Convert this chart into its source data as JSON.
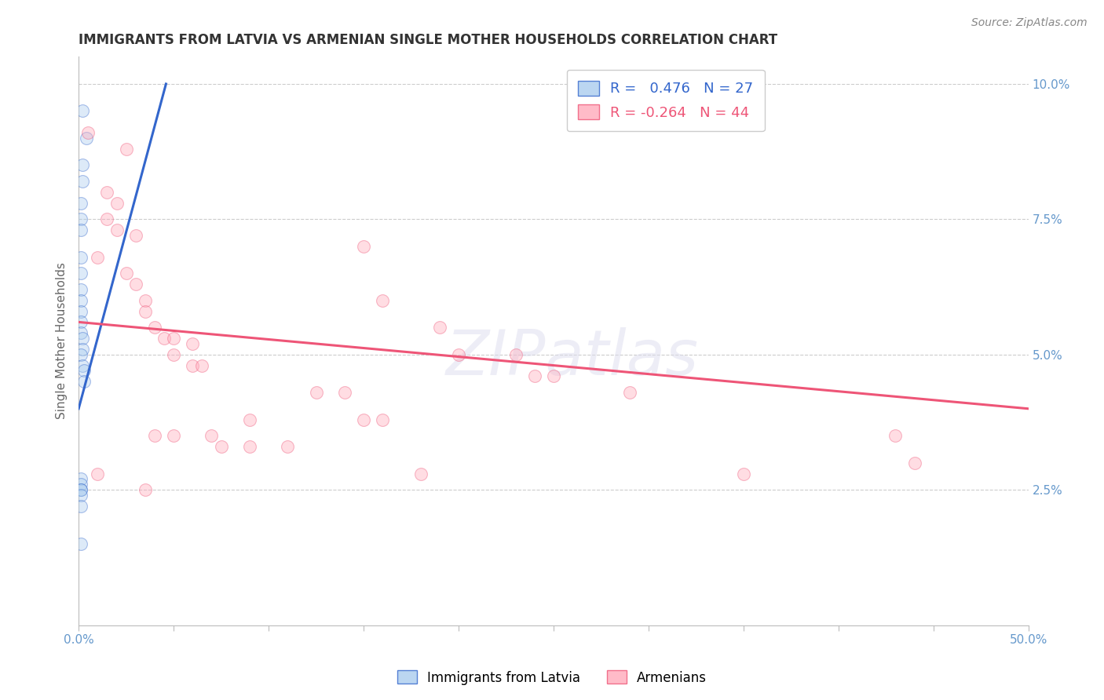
{
  "title": "IMMIGRANTS FROM LATVIA VS ARMENIAN SINGLE MOTHER HOUSEHOLDS CORRELATION CHART",
  "source": "Source: ZipAtlas.com",
  "ylabel": "Single Mother Households",
  "watermark": "ZIPatlas",
  "right_yticks": [
    0.0,
    0.025,
    0.05,
    0.075,
    0.1
  ],
  "right_yticklabels": [
    "",
    "2.5%",
    "5.0%",
    "7.5%",
    "10.0%"
  ],
  "legend_blue_r": "0.476",
  "legend_blue_n": "27",
  "legend_pink_r": "-0.264",
  "legend_pink_n": "44",
  "blue_color": "#AACCEE",
  "pink_color": "#FFAABB",
  "trendline_blue": "#3366CC",
  "trendline_pink": "#EE5577",
  "blue_label": "Immigrants from Latvia",
  "pink_label": "Armenians",
  "blue_points": [
    [
      0.002,
      0.095
    ],
    [
      0.004,
      0.09
    ],
    [
      0.002,
      0.085
    ],
    [
      0.002,
      0.082
    ],
    [
      0.001,
      0.078
    ],
    [
      0.001,
      0.075
    ],
    [
      0.001,
      0.073
    ],
    [
      0.001,
      0.068
    ],
    [
      0.001,
      0.065
    ],
    [
      0.001,
      0.062
    ],
    [
      0.001,
      0.06
    ],
    [
      0.001,
      0.058
    ],
    [
      0.001,
      0.056
    ],
    [
      0.001,
      0.054
    ],
    [
      0.002,
      0.053
    ],
    [
      0.002,
      0.051
    ],
    [
      0.001,
      0.05
    ],
    [
      0.002,
      0.048
    ],
    [
      0.003,
      0.047
    ],
    [
      0.003,
      0.045
    ],
    [
      0.001,
      0.027
    ],
    [
      0.001,
      0.026
    ],
    [
      0.001,
      0.025
    ],
    [
      0.001,
      0.025
    ],
    [
      0.001,
      0.024
    ],
    [
      0.001,
      0.022
    ],
    [
      0.001,
      0.015
    ]
  ],
  "pink_points": [
    [
      0.005,
      0.091
    ],
    [
      0.025,
      0.088
    ],
    [
      0.015,
      0.08
    ],
    [
      0.02,
      0.078
    ],
    [
      0.015,
      0.075
    ],
    [
      0.02,
      0.073
    ],
    [
      0.03,
      0.072
    ],
    [
      0.01,
      0.068
    ],
    [
      0.025,
      0.065
    ],
    [
      0.03,
      0.063
    ],
    [
      0.035,
      0.06
    ],
    [
      0.035,
      0.058
    ],
    [
      0.04,
      0.055
    ],
    [
      0.045,
      0.053
    ],
    [
      0.05,
      0.053
    ],
    [
      0.05,
      0.05
    ],
    [
      0.06,
      0.052
    ],
    [
      0.06,
      0.048
    ],
    [
      0.065,
      0.048
    ],
    [
      0.15,
      0.07
    ],
    [
      0.16,
      0.06
    ],
    [
      0.19,
      0.055
    ],
    [
      0.2,
      0.05
    ],
    [
      0.23,
      0.05
    ],
    [
      0.24,
      0.046
    ],
    [
      0.25,
      0.046
    ],
    [
      0.09,
      0.038
    ],
    [
      0.15,
      0.038
    ],
    [
      0.16,
      0.038
    ],
    [
      0.01,
      0.028
    ],
    [
      0.035,
      0.025
    ],
    [
      0.18,
      0.028
    ],
    [
      0.29,
      0.043
    ],
    [
      0.35,
      0.028
    ],
    [
      0.43,
      0.035
    ],
    [
      0.44,
      0.03
    ],
    [
      0.09,
      0.033
    ],
    [
      0.11,
      0.033
    ],
    [
      0.125,
      0.043
    ],
    [
      0.14,
      0.043
    ],
    [
      0.04,
      0.035
    ],
    [
      0.05,
      0.035
    ],
    [
      0.07,
      0.035
    ],
    [
      0.075,
      0.033
    ]
  ],
  "blue_trendline_x": [
    0.0,
    0.046
  ],
  "blue_trendline_y": [
    0.04,
    0.1
  ],
  "pink_trendline_x": [
    0.0,
    0.5
  ],
  "pink_trendline_y": [
    0.056,
    0.04
  ],
  "xlim": [
    0.0,
    0.5
  ],
  "ylim": [
    0.0,
    0.105
  ],
  "grid_color": "#CCCCCC",
  "background_color": "#FFFFFF",
  "title_color": "#333333",
  "axis_color": "#6699CC",
  "marker_size": 130,
  "marker_alpha": 0.4
}
